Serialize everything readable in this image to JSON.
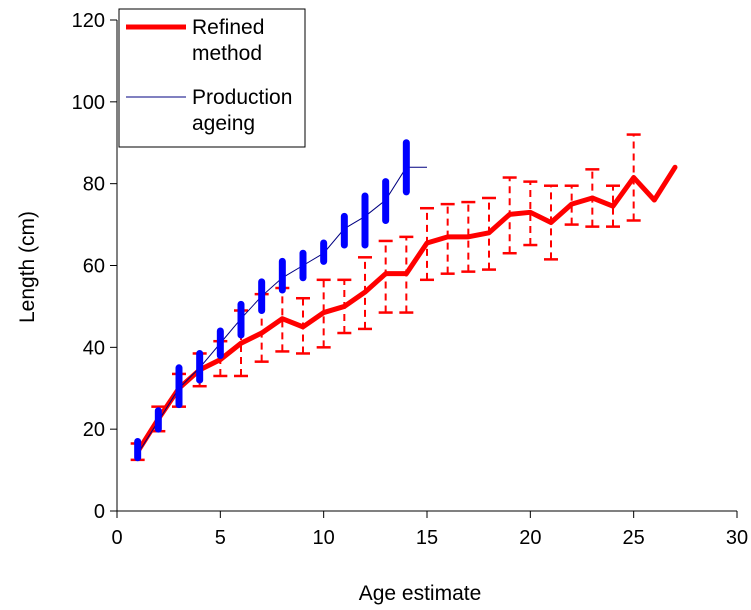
{
  "chart_data": {
    "type": "line",
    "title": "",
    "xlabel": "Age estimate",
    "ylabel": "Length (cm)",
    "xlim": [
      0,
      30
    ],
    "ylim": [
      0,
      120
    ],
    "xticks": [
      0,
      5,
      10,
      15,
      20,
      25,
      30
    ],
    "yticks": [
      0,
      20,
      40,
      60,
      80,
      100,
      120
    ],
    "grid": false,
    "legend": {
      "placement": "top-left",
      "entries": [
        {
          "label_lines": [
            "Refined",
            "method"
          ],
          "color": "#ff0000"
        },
        {
          "label_lines": [
            "Production",
            "ageing"
          ],
          "color": "#000080"
        }
      ]
    },
    "series": [
      {
        "name": "Refined method",
        "color": "#ff0000",
        "x": [
          1,
          2,
          3,
          4,
          5,
          6,
          7,
          8,
          9,
          10,
          11,
          12,
          13,
          14,
          15,
          16,
          17,
          18,
          19,
          20,
          21,
          22,
          23,
          24,
          25,
          26,
          27
        ],
        "y": [
          14.5,
          22.5,
          30,
          34.5,
          37,
          41,
          43.5,
          47,
          45,
          48.5,
          50,
          53.5,
          58,
          58,
          65.5,
          67,
          67,
          68,
          72.5,
          73,
          70.5,
          75,
          76.5,
          74.5,
          81.5,
          76,
          84
        ],
        "err_low": [
          12.5,
          19.5,
          25.5,
          30.5,
          33,
          33,
          36.5,
          39,
          38.5,
          40,
          43.5,
          44.5,
          48.5,
          48.5,
          56.5,
          58,
          58.5,
          59,
          63,
          65,
          61.5,
          70,
          69.5,
          69.5,
          71,
          null,
          null
        ],
        "err_high": [
          16.5,
          25.5,
          33.5,
          38.5,
          41.5,
          49,
          53,
          54.5,
          52,
          56.5,
          56.5,
          62,
          66,
          67,
          74,
          75,
          75.5,
          76.5,
          81.5,
          80.5,
          79.5,
          79.5,
          83.5,
          79.5,
          92,
          null,
          null
        ]
      },
      {
        "name": "Production ageing",
        "color": "#000080",
        "x": [
          1,
          2,
          3,
          4,
          5,
          6,
          7,
          8,
          9,
          10,
          11,
          12,
          13,
          14,
          15
        ],
        "y": [
          14,
          22,
          30,
          35,
          41,
          47,
          52.5,
          57,
          60,
          63,
          69,
          72,
          76,
          84,
          84
        ],
        "range_low": [
          13,
          20,
          26,
          32,
          38,
          43,
          49,
          54,
          57,
          61,
          65,
          65,
          71,
          78,
          null
        ],
        "range_high": [
          17,
          24.5,
          35,
          38.5,
          44,
          50.5,
          56,
          61,
          63,
          65.5,
          72,
          77,
          80.5,
          90,
          null
        ],
        "range_color": "#0000ff"
      }
    ]
  }
}
